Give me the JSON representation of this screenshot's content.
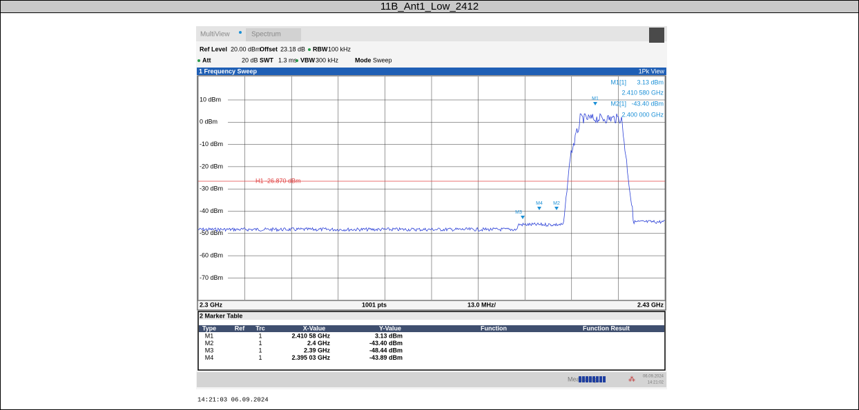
{
  "title": "11B_Ant1_Low_2412",
  "tabs": [
    "MultiView",
    "Spectrum"
  ],
  "settings": {
    "ref_level_label": "Ref Level",
    "ref_level": "20.00 dBm",
    "offset_label": "Offset",
    "offset": "23.18 dB",
    "rbw_label": "RBW",
    "rbw": "100 kHz",
    "att_label": "Att",
    "att": "20 dB",
    "swt_label": "SWT",
    "swt": "1.3 ms",
    "vbw_label": "VBW",
    "vbw": "300 kHz",
    "mode_label": "Mode",
    "mode": "Sweep"
  },
  "sweep": {
    "title": "1 Frequency Sweep",
    "view": "1Pk View",
    "y_labels": [
      "10 dBm",
      "0 dBm",
      "-10 dBm",
      "-20 dBm",
      "-30 dBm",
      "-40 dBm",
      "-50 dBm",
      "-60 dBm",
      "-70 dBm"
    ],
    "line_label": "H1 -26.870 dBm",
    "markers": [
      {
        "label": "M1[1]",
        "value": "3.13 dBm",
        "freq": "2.410 580 GHz"
      },
      {
        "label": "M2[1]",
        "value": "-43.40 dBm",
        "freq": "2.400 000 GHz"
      }
    ],
    "trace_markers": [
      "M1",
      "M3",
      "M4",
      "M2"
    ],
    "start": "2.3 GHz",
    "points": "1001 pts",
    "span": "13.0 MHz/",
    "stop": "2.43 GHz"
  },
  "marker_table": {
    "title": "2 Marker Table",
    "columns": [
      "Type",
      "Ref",
      "Trc",
      "X-Value",
      "Y-Value",
      "Function",
      "Function Result"
    ],
    "rows": [
      {
        "type": "M1",
        "trc": "1",
        "x": "2.410 58 GHz",
        "y": "3.13 dBm"
      },
      {
        "type": "M2",
        "trc": "1",
        "x": "2.4 GHz",
        "y": "-43.40 dBm"
      },
      {
        "type": "M3",
        "trc": "1",
        "x": "2.39 GHz",
        "y": "-48.44 dBm"
      },
      {
        "type": "M4",
        "trc": "1",
        "x": "2.395 03 GHz",
        "y": "-43.89 dBm"
      }
    ]
  },
  "status": {
    "text": "Measuring...",
    "date": "06.09.2024",
    "time": "14:21:02"
  },
  "footer": "14:21:03  06.09.2024"
}
